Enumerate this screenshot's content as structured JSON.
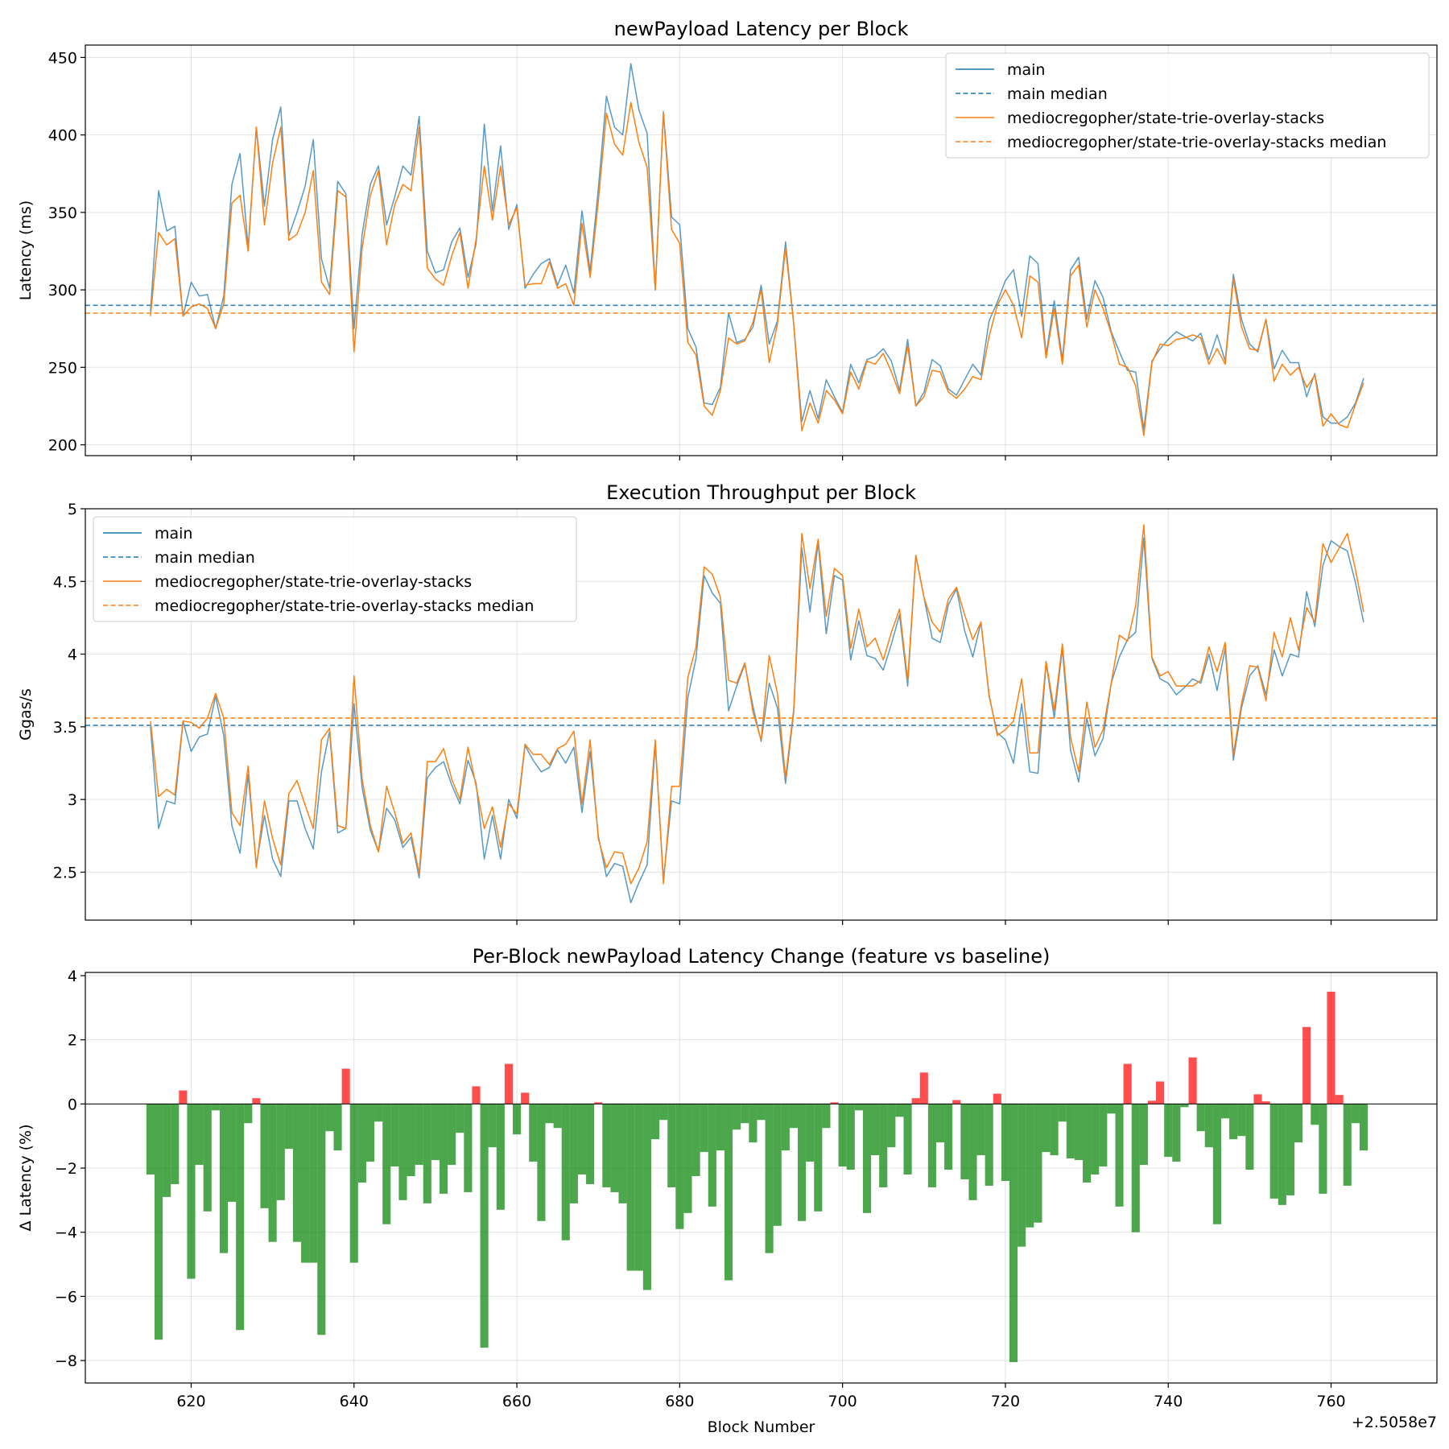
{
  "chart_data": [
    {
      "type": "line",
      "title": "newPayload Latency per Block",
      "xlabel": "",
      "ylabel": "Latency (ms)",
      "ylim": [
        193,
        458
      ],
      "xlim": [
        607,
        773
      ],
      "yticks": [
        200,
        250,
        300,
        350,
        400,
        450
      ],
      "xticks": [
        620,
        640,
        660,
        680,
        700,
        720,
        740,
        760
      ],
      "grid": true,
      "legend_position": "top-right",
      "x_start": 615,
      "series": [
        {
          "name": "main",
          "color": "#1f77b4",
          "style": "solid",
          "values": [
            286,
            364,
            338,
            341,
            283,
            305,
            296,
            297,
            275,
            296,
            368,
            388,
            327,
            405,
            354,
            397,
            418,
            335,
            350,
            367,
            397,
            320,
            301,
            370,
            362,
            275,
            336,
            368,
            380,
            342,
            360,
            380,
            374,
            412,
            325,
            311,
            313,
            331,
            340,
            308,
            330,
            407,
            351,
            393,
            339,
            355,
            301,
            310,
            317,
            320,
            303,
            316,
            298,
            351,
            312,
            365,
            425,
            405,
            400,
            446,
            416,
            401,
            300,
            415,
            347,
            342,
            275,
            263,
            227,
            226,
            237,
            285,
            266,
            268,
            276,
            303,
            265,
            280,
            331,
            278,
            215,
            235,
            217,
            242,
            231,
            221,
            252,
            240,
            255,
            257,
            262,
            254,
            235,
            268,
            225,
            234,
            255,
            251,
            236,
            232,
            242,
            252,
            245,
            280,
            292,
            306,
            313,
            283,
            322,
            317,
            258,
            293,
            255,
            313,
            321,
            281,
            306,
            295,
            273,
            260,
            248,
            247,
            210,
            254,
            262,
            268,
            273,
            270,
            267,
            272,
            255,
            271,
            254,
            310,
            281,
            265,
            260,
            281,
            249,
            261,
            253,
            253,
            231,
            246,
            218,
            214,
            214,
            218,
            227,
            243
          ]
        },
        {
          "name": "main median",
          "color": "#1f77b4",
          "style": "dashed",
          "constant": 290
        },
        {
          "name": "mediocregopher/state-trie-overlay-stacks",
          "color": "#ff7f0e",
          "style": "solid",
          "values": [
            283,
            337,
            329,
            333,
            283,
            289,
            291,
            288,
            275,
            291,
            356,
            361,
            325,
            405,
            342,
            382,
            405,
            332,
            336,
            350,
            377,
            305,
            297,
            364,
            360,
            260,
            327,
            361,
            377,
            329,
            355,
            368,
            364,
            405,
            314,
            307,
            303,
            322,
            337,
            301,
            333,
            380,
            345,
            380,
            342,
            353,
            303,
            304,
            304,
            318,
            301,
            304,
            290,
            343,
            308,
            357,
            414,
            394,
            387,
            421,
            395,
            379,
            300,
            414,
            339,
            330,
            266,
            258,
            225,
            219,
            235,
            269,
            265,
            267,
            279,
            300,
            253,
            278,
            327,
            278,
            209,
            227,
            214,
            235,
            229,
            220,
            247,
            236,
            254,
            252,
            259,
            247,
            233,
            264,
            225,
            231,
            248,
            247,
            234,
            230,
            236,
            244,
            242,
            270,
            290,
            300,
            290,
            269,
            309,
            305,
            256,
            288,
            252,
            309,
            316,
            276,
            300,
            288,
            272,
            252,
            250,
            238,
            206,
            253,
            265,
            264,
            268,
            269,
            271,
            269,
            252,
            262,
            252,
            307,
            276,
            262,
            261,
            281,
            241,
            252,
            245,
            250,
            237,
            245,
            212,
            220,
            213,
            211,
            226,
            240
          ]
        },
        {
          "name": "mediocregopher/state-trie-overlay-stacks median",
          "color": "#ff7f0e",
          "style": "dashed",
          "constant": 285
        }
      ]
    },
    {
      "type": "line",
      "title": "Execution Throughput per Block",
      "xlabel": "",
      "ylabel": "Ggas/s",
      "ylim": [
        2.17,
        5.0
      ],
      "xlim": [
        607,
        773
      ],
      "yticks": [
        2.5,
        3.0,
        3.5,
        4.0,
        4.5,
        5.0
      ],
      "xticks": [
        620,
        640,
        660,
        680,
        700,
        720,
        740,
        760
      ],
      "grid": true,
      "legend_position": "top-left",
      "x_start": 615,
      "series": [
        {
          "name": "main",
          "color": "#1f77b4",
          "style": "solid",
          "values": [
            3.5,
            2.8,
            2.99,
            2.97,
            3.54,
            3.33,
            3.43,
            3.45,
            3.71,
            3.44,
            2.82,
            2.63,
            3.17,
            2.55,
            2.89,
            2.59,
            2.47,
            2.99,
            2.99,
            2.8,
            2.66,
            3.19,
            3.47,
            2.77,
            2.8,
            3.66,
            3.08,
            2.79,
            2.64,
            2.94,
            2.86,
            2.67,
            2.74,
            2.46,
            3.15,
            3.22,
            3.26,
            3.1,
            2.97,
            3.27,
            3.11,
            2.59,
            2.89,
            2.59,
            3.0,
            2.87,
            3.37,
            3.27,
            3.19,
            3.22,
            3.34,
            3.25,
            3.36,
            2.91,
            3.33,
            2.75,
            2.47,
            2.56,
            2.54,
            2.29,
            2.43,
            2.55,
            3.38,
            2.45,
            2.99,
            2.97,
            3.7,
            3.97,
            4.54,
            4.42,
            4.35,
            3.61,
            3.78,
            3.93,
            3.64,
            3.4,
            3.8,
            3.63,
            3.11,
            3.6,
            4.73,
            4.29,
            4.77,
            4.14,
            4.54,
            4.51,
            3.96,
            4.23,
            3.99,
            3.97,
            3.89,
            4.07,
            4.27,
            3.78,
            4.68,
            4.39,
            4.11,
            4.08,
            4.34,
            4.45,
            4.16,
            3.98,
            4.22,
            3.71,
            3.46,
            3.41,
            3.25,
            3.66,
            3.19,
            3.18,
            3.94,
            3.56,
            4.04,
            3.34,
            3.12,
            3.56,
            3.3,
            3.42,
            3.8,
            3.98,
            4.1,
            4.15,
            4.8,
            3.97,
            3.83,
            3.8,
            3.72,
            3.77,
            3.83,
            3.8,
            4.0,
            3.75,
            4.04,
            3.27,
            3.63,
            3.85,
            3.92,
            3.72,
            4.03,
            3.85,
            4.0,
            3.98,
            4.43,
            4.19,
            4.61,
            4.78,
            4.74,
            4.71,
            4.49,
            4.22
          ]
        },
        {
          "name": "main median",
          "color": "#1f77b4",
          "style": "dashed",
          "constant": 3.51
        },
        {
          "name": "mediocregopher/state-trie-overlay-stacks",
          "color": "#ff7f0e",
          "style": "solid",
          "values": [
            3.54,
            3.02,
            3.07,
            3.03,
            3.54,
            3.53,
            3.49,
            3.56,
            3.73,
            3.56,
            2.91,
            2.82,
            3.23,
            2.53,
            2.99,
            2.73,
            2.55,
            3.04,
            3.13,
            2.96,
            2.8,
            3.41,
            3.49,
            2.82,
            2.8,
            3.85,
            3.14,
            2.82,
            2.64,
            3.09,
            2.91,
            2.7,
            2.77,
            2.49,
            3.26,
            3.26,
            3.35,
            3.14,
            3.0,
            3.36,
            3.09,
            2.8,
            2.95,
            2.67,
            2.97,
            2.9,
            3.38,
            3.31,
            3.31,
            3.24,
            3.35,
            3.38,
            3.47,
            2.97,
            3.41,
            2.73,
            2.53,
            2.64,
            2.63,
            2.42,
            2.53,
            2.71,
            3.41,
            2.42,
            3.09,
            3.09,
            3.84,
            4.05,
            4.6,
            4.55,
            4.39,
            3.82,
            3.8,
            3.94,
            3.6,
            3.41,
            3.99,
            3.73,
            3.15,
            3.62,
            4.83,
            4.45,
            4.79,
            4.26,
            4.59,
            4.54,
            4.04,
            4.31,
            4.05,
            4.11,
            3.96,
            4.15,
            4.31,
            3.82,
            4.68,
            4.39,
            4.22,
            4.15,
            4.38,
            4.46,
            4.27,
            4.1,
            4.22,
            3.72,
            3.44,
            3.48,
            3.54,
            3.83,
            3.32,
            3.32,
            3.95,
            3.61,
            4.07,
            3.43,
            3.19,
            3.67,
            3.36,
            3.48,
            3.8,
            4.13,
            4.09,
            4.33,
            4.89,
            3.98,
            3.85,
            3.88,
            3.78,
            3.78,
            3.78,
            3.82,
            4.05,
            3.88,
            4.08,
            3.31,
            3.66,
            3.92,
            3.91,
            3.68,
            4.15,
            3.98,
            4.25,
            4.03,
            4.32,
            4.22,
            4.76,
            4.63,
            4.73,
            4.83,
            4.58,
            4.29
          ]
        },
        {
          "name": "mediocregopher/state-trie-overlay-stacks median",
          "color": "#ff7f0e",
          "style": "dashed",
          "constant": 3.56
        }
      ]
    },
    {
      "type": "bar",
      "title": "Per-Block newPayload Latency Change (feature vs baseline)",
      "xlabel": "Block Number",
      "ylabel": "Δ Latency (%)",
      "ylim": [
        -8.7,
        4.1
      ],
      "xlim": [
        607,
        773
      ],
      "yticks": [
        -8,
        -6,
        -4,
        -2,
        0,
        2,
        4
      ],
      "xticks": [
        620,
        640,
        660,
        680,
        700,
        720,
        740,
        760
      ],
      "x_offset_label": "+2.5058e7",
      "grid": true,
      "positive_color": "#ff0000",
      "negative_color": "#008000",
      "x_start": 615,
      "values": [
        -2.2,
        -7.35,
        -2.9,
        -2.5,
        0.42,
        -5.45,
        -1.9,
        -3.35,
        -0.2,
        -4.65,
        -3.05,
        -7.05,
        -0.6,
        0.18,
        -3.25,
        -4.3,
        -3.0,
        -1.4,
        -4.3,
        -4.95,
        -4.95,
        -7.2,
        -0.85,
        -1.45,
        1.1,
        -4.95,
        -2.45,
        -1.8,
        -0.55,
        -3.75,
        -1.95,
        -3.0,
        -2.25,
        -1.9,
        -3.1,
        -1.75,
        -2.8,
        -1.9,
        -0.9,
        -2.75,
        0.55,
        -7.6,
        -1.35,
        -3.3,
        1.25,
        -0.95,
        0.35,
        -1.8,
        -3.65,
        -0.6,
        -0.75,
        -4.25,
        -3.1,
        -2.2,
        -2.5,
        0.05,
        -2.6,
        -2.75,
        -3.1,
        -5.2,
        -5.2,
        -5.8,
        -1.1,
        -0.5,
        -2.6,
        -3.9,
        -3.4,
        -2.25,
        -1.5,
        -3.2,
        -1.45,
        -5.5,
        -0.8,
        -0.6,
        -1.2,
        -0.5,
        -4.65,
        -3.8,
        -1.45,
        -0.75,
        -3.65,
        -1.8,
        -3.35,
        -0.75,
        0.05,
        -1.95,
        -2.05,
        -0.2,
        -3.4,
        -1.6,
        -2.6,
        -1.35,
        -0.4,
        -2.2,
        0.18,
        0.98,
        -2.6,
        -1.2,
        -2.05,
        0.12,
        -2.35,
        -3.0,
        -1.6,
        -2.55,
        0.32,
        -2.4,
        -8.05,
        -4.45,
        -3.85,
        -3.7,
        -1.5,
        -1.6,
        -0.55,
        -1.7,
        -1.75,
        -2.45,
        -2.2,
        -1.95,
        -0.3,
        -3.2,
        1.25,
        -4.0,
        -1.9,
        0.1,
        0.7,
        -1.65,
        -1.8,
        -0.1,
        1.45,
        -0.85,
        -1.35,
        -3.75,
        -0.45,
        -1.1,
        -1.0,
        -2.05,
        0.3,
        0.08,
        -2.95,
        -3.15,
        -2.85,
        -1.2,
        2.4,
        -0.65,
        -2.8,
        3.5,
        0.28,
        -2.55,
        -0.6,
        -1.45
      ]
    }
  ]
}
